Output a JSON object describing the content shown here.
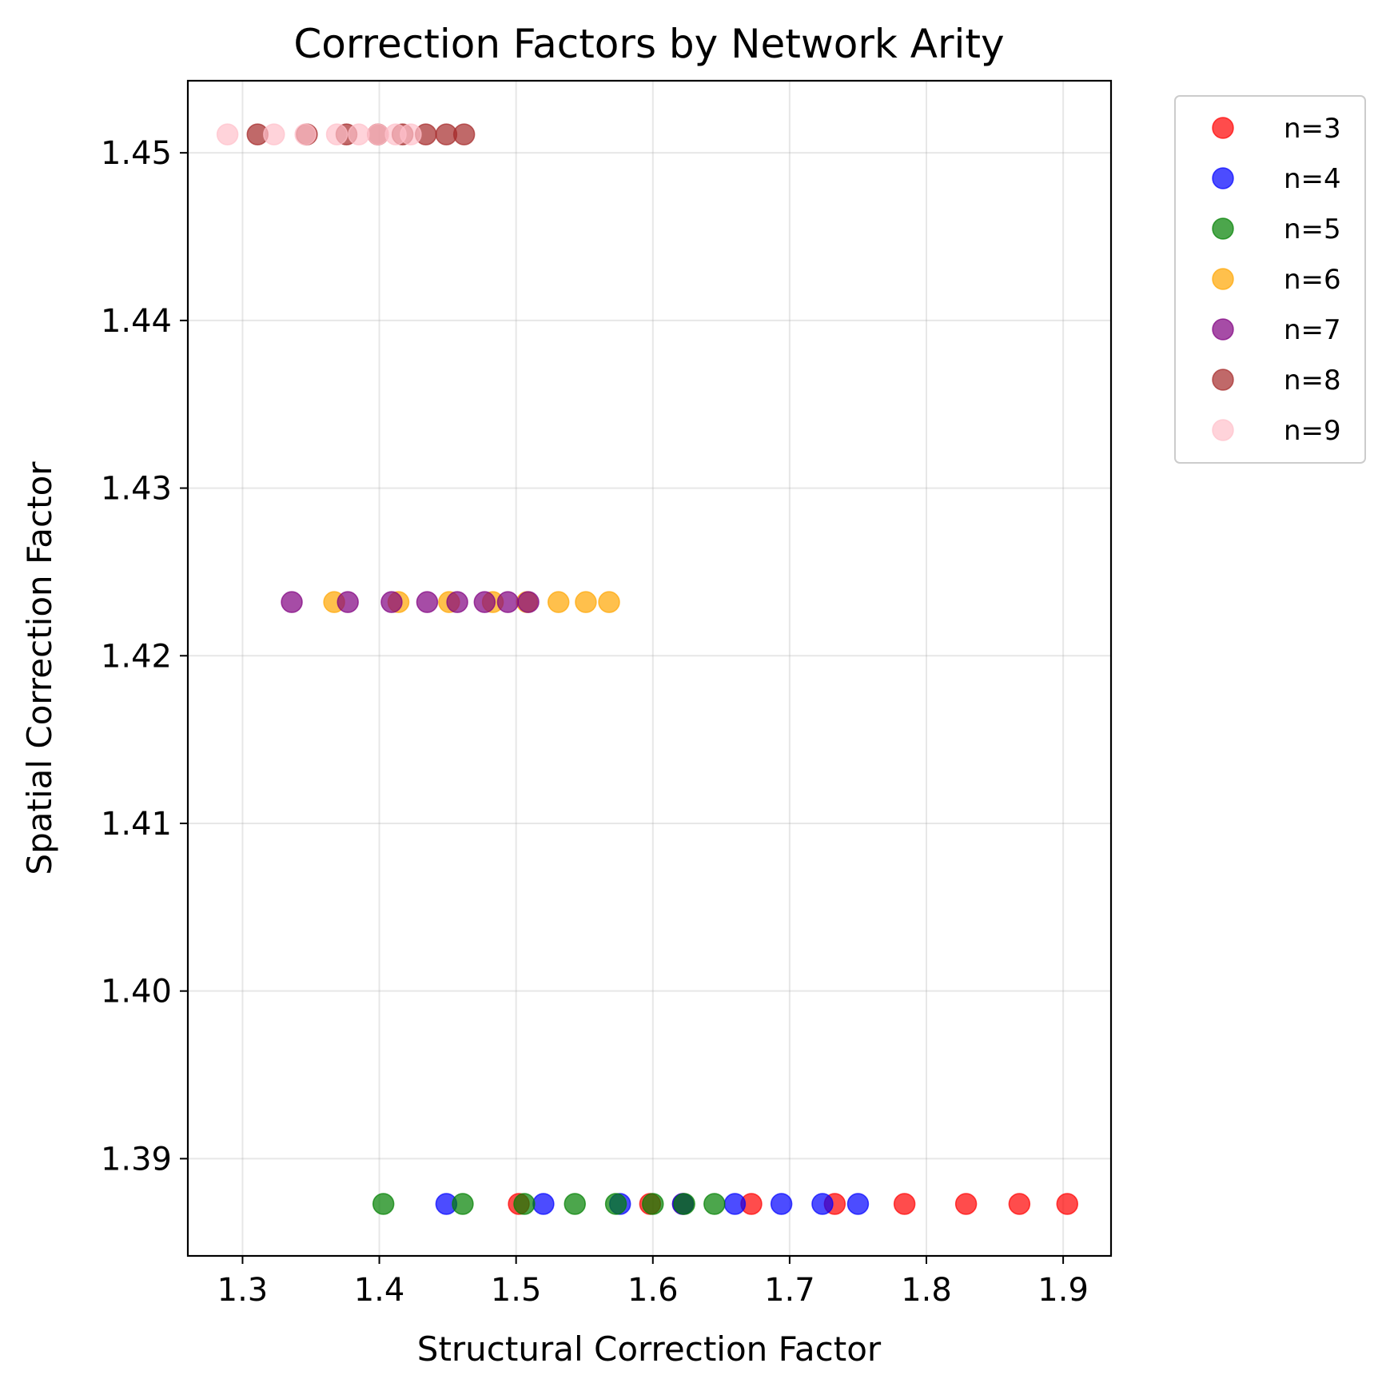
{
  "chart_data": {
    "type": "scatter",
    "title": "Correction Factors by Network Arity",
    "xlabel": "Structural Correction Factor",
    "ylabel": "Spatial Correction Factor",
    "xlim": [
      1.26,
      1.935
    ],
    "ylim": [
      1.3842,
      1.4543
    ],
    "xticks": [
      1.3,
      1.4,
      1.5,
      1.6,
      1.7,
      1.8,
      1.9
    ],
    "xtick_labels": [
      "1.3",
      "1.4",
      "1.5",
      "1.6",
      "1.7",
      "1.8",
      "1.9"
    ],
    "yticks": [
      1.39,
      1.4,
      1.41,
      1.42,
      1.43,
      1.44,
      1.45
    ],
    "ytick_labels": [
      "1.39",
      "1.40",
      "1.41",
      "1.42",
      "1.43",
      "1.44",
      "1.45"
    ],
    "grid": true,
    "legend_position": "outside-right-top",
    "series": [
      {
        "name": "n=3",
        "color": "#ff0000",
        "y": 1.3873,
        "x": [
          1.502,
          1.598,
          1.622,
          1.672,
          1.733,
          1.784,
          1.829,
          1.868,
          1.903
        ]
      },
      {
        "name": "n=4",
        "color": "#0000ff",
        "y": 1.3873,
        "x": [
          1.449,
          1.52,
          1.576,
          1.622,
          1.66,
          1.694,
          1.724,
          1.75
        ]
      },
      {
        "name": "n=5",
        "color": "#008000",
        "y": 1.3873,
        "x": [
          1.403,
          1.461,
          1.506,
          1.543,
          1.573,
          1.6,
          1.623,
          1.645
        ]
      },
      {
        "name": "n=6",
        "color": "#ffa500",
        "y": 1.4232,
        "x": [
          1.367,
          1.414,
          1.451,
          1.483,
          1.508,
          1.531,
          1.551,
          1.568
        ]
      },
      {
        "name": "n=7",
        "color": "#800080",
        "y": 1.4232,
        "x": [
          1.336,
          1.377,
          1.409,
          1.435,
          1.457,
          1.477,
          1.494,
          1.509
        ]
      },
      {
        "name": "n=8",
        "color": "#a52a2a",
        "y": 1.4511,
        "x": [
          1.311,
          1.347,
          1.376,
          1.399,
          1.417,
          1.434,
          1.449,
          1.462
        ]
      },
      {
        "name": "n=9",
        "color": "#ffc0cb",
        "y": 1.4511,
        "x": [
          1.289,
          1.323,
          1.346,
          1.369,
          1.385,
          1.399,
          1.412,
          1.423
        ]
      }
    ]
  }
}
